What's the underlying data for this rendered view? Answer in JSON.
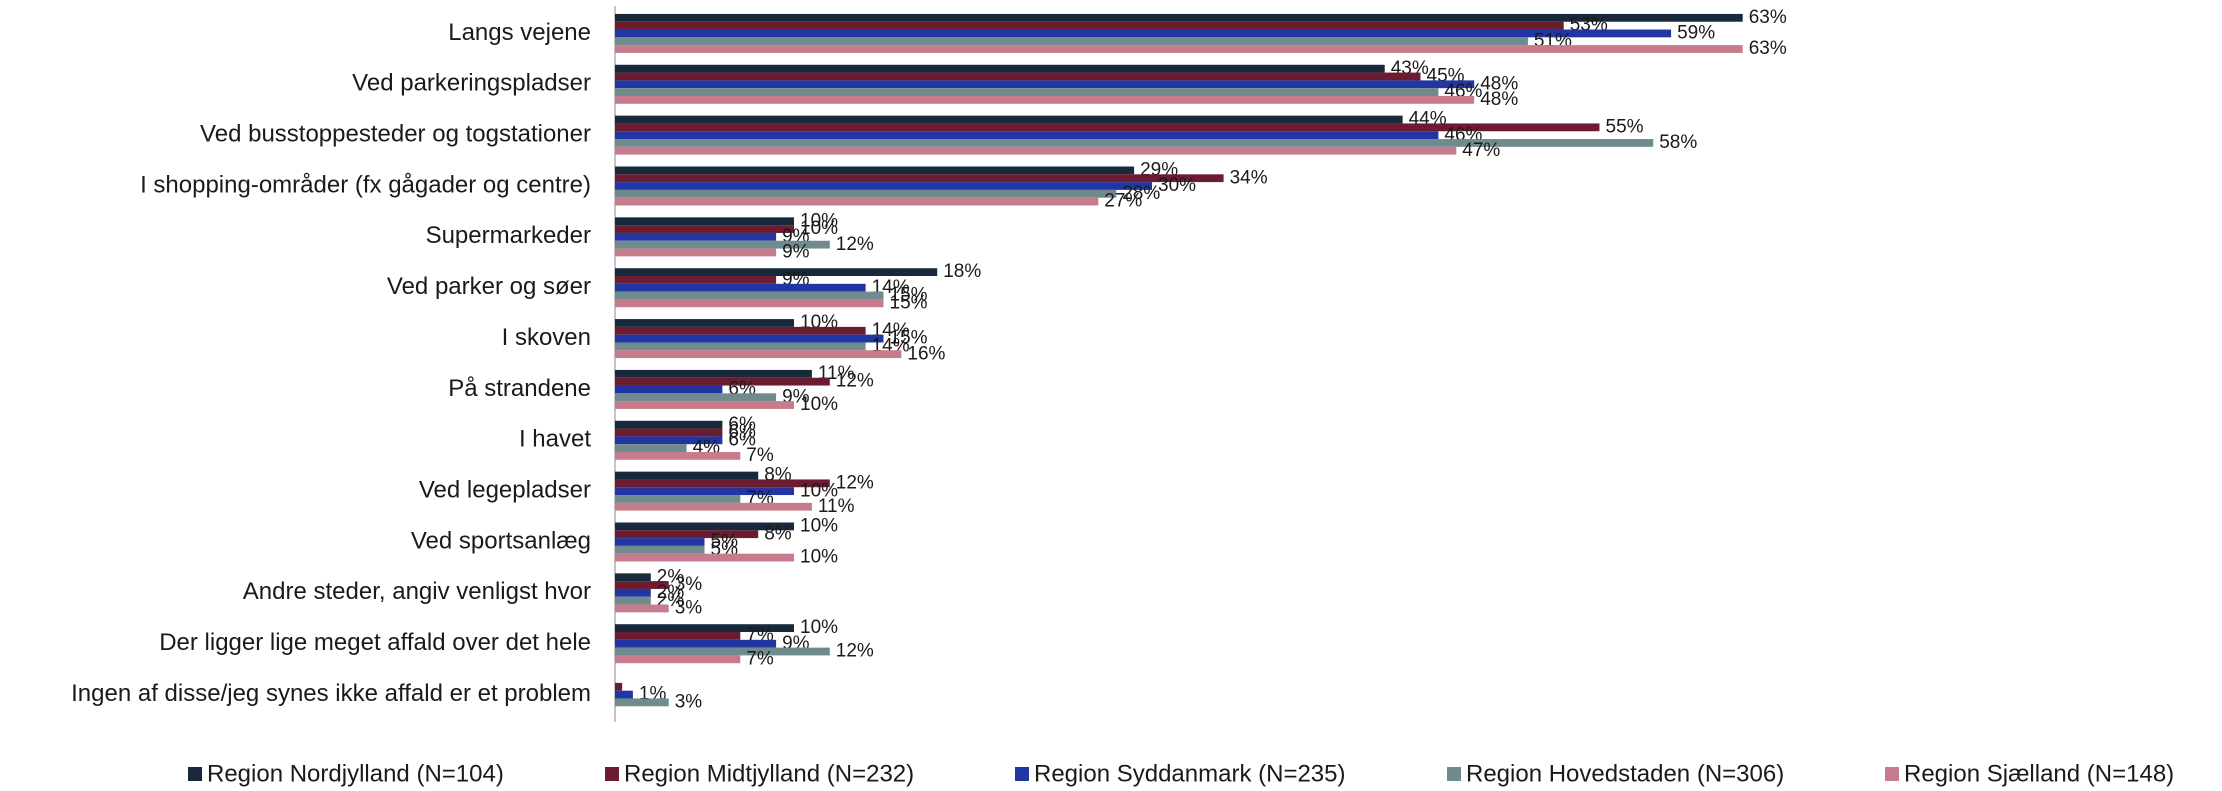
{
  "chart_data": {
    "type": "hbar",
    "categories": [
      "Langs vejene",
      "Ved parkeringspladser",
      "Ved busstoppesteder og togstationer",
      "I shopping-områder (fx gågader og centre)",
      "Supermarkeder",
      "Ved parker og søer",
      "I skoven",
      "På strandene",
      "I havet",
      "Ved legepladser",
      "Ved sportsanlæg",
      "Andre steder, angiv venligst hvor",
      "Der ligger lige meget affald over det hele",
      "Ingen af disse/jeg synes ikke affald er et problem"
    ],
    "series": [
      {
        "name": "Region Nordjylland (N=104)",
        "color": "#17293a",
        "values": [
          63,
          43,
          44,
          29,
          10,
          18,
          10,
          11,
          6,
          8,
          10,
          2,
          10,
          null
        ],
        "value_labels": [
          "63%",
          "43%",
          "44%",
          "29%",
          "10%",
          "18%",
          "10%",
          "11%",
          "6%",
          "8%",
          "10%",
          "2%",
          "10%",
          null
        ]
      },
      {
        "name": "Region Midtjylland (N=232)",
        "color": "#6b1c30",
        "values": [
          53,
          45,
          55,
          34,
          10,
          9,
          14,
          12,
          6,
          12,
          8,
          3,
          7,
          0.4
        ],
        "value_labels": [
          "53%",
          "45%",
          "55%",
          "34%",
          "10%",
          "9%",
          "14%",
          "12%",
          "6%",
          "12%",
          "8%",
          "3%",
          "7%",
          null
        ]
      },
      {
        "name": "Region Syddanmark (N=235)",
        "color": "#2236a3",
        "values": [
          59,
          48,
          46,
          30,
          9,
          14,
          15,
          6,
          6,
          10,
          5,
          2,
          9,
          1
        ],
        "value_labels": [
          "59%",
          "48%",
          "46%",
          "30%",
          "9%",
          "14%",
          "15%",
          "6%",
          "6%",
          "10%",
          "5%",
          "2%",
          "9%",
          "1%"
        ]
      },
      {
        "name": "Region Hovedstaden (N=306)",
        "color": "#6f8b8d",
        "values": [
          51,
          46,
          58,
          28,
          12,
          15,
          14,
          9,
          4,
          7,
          5,
          2,
          12,
          3
        ],
        "value_labels": [
          "51%",
          "46%",
          "58%",
          "28%",
          "12%",
          "15%",
          "14%",
          "9%",
          "4%",
          "7%",
          "5%",
          "2%",
          "12%",
          "3%"
        ]
      },
      {
        "name": "Region Sjælland (N=148)",
        "color": "#c67c8c",
        "values": [
          63,
          48,
          47,
          27,
          9,
          15,
          16,
          10,
          7,
          11,
          10,
          3,
          7,
          null
        ],
        "value_labels": [
          "63%",
          "48%",
          "47%",
          "27%",
          "9%",
          "15%",
          "16%",
          "10%",
          "7%",
          "11%",
          "10%",
          "3%",
          "7%",
          null
        ]
      }
    ],
    "legend": "bottom"
  }
}
